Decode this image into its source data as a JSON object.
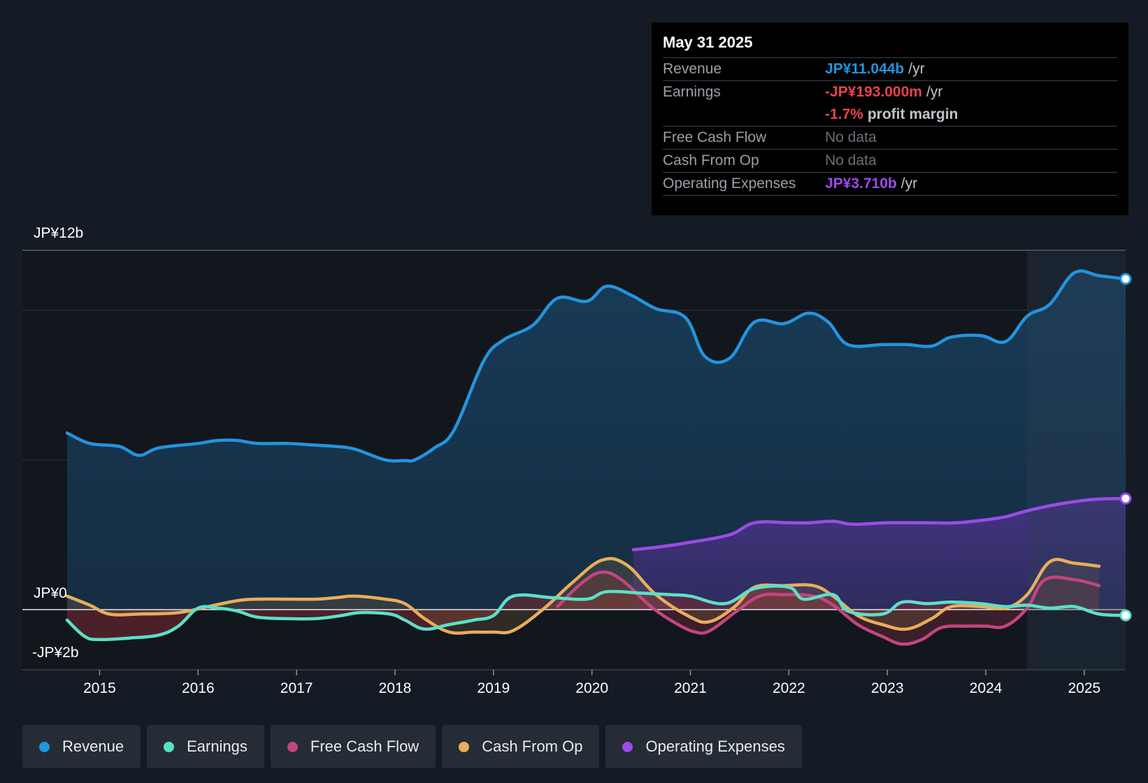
{
  "tooltip": {
    "date": "May 31 2025",
    "revenue_label": "Revenue",
    "revenue_value": "JP¥11.044b",
    "revenue_unit": "/yr",
    "earnings_label": "Earnings",
    "earnings_value": "-JP¥193.000m",
    "earnings_unit": "/yr",
    "margin_value": "-1.7%",
    "margin_label": "profit margin",
    "fcf_label": "Free Cash Flow",
    "fcf_value": "No data",
    "cfo_label": "Cash From Op",
    "cfo_value": "No data",
    "opex_label": "Operating Expenses",
    "opex_value": "JP¥3.710b",
    "opex_unit": "/yr"
  },
  "legend": [
    {
      "label": "Revenue",
      "color": "#2394df"
    },
    {
      "label": "Earnings",
      "color": "#5be0c8"
    },
    {
      "label": "Free Cash Flow",
      "color": "#c4457f"
    },
    {
      "label": "Cash From Op",
      "color": "#e8ad5d"
    },
    {
      "label": "Operating Expenses",
      "color": "#9b4be8"
    }
  ],
  "colors": {
    "revenue": "#2394df",
    "earnings": "#5be0c8",
    "fcf": "#c4457f",
    "cfo": "#e8ad5d",
    "opex": "#9b4be8",
    "negative": "#e8434f",
    "profit_text": "#bfc4ca"
  },
  "chart_data": {
    "type": "line",
    "title": "",
    "unit": "JP¥ billions",
    "y_label_top": "JP¥12b",
    "y_label_zero": "JP¥0",
    "y_label_bottom": "-JP¥2b",
    "ylim": [
      -2,
      12
    ],
    "xlim": [
      2014.67,
      2025.42
    ],
    "highlight_start": 2024.42,
    "x_ticks": [
      "2015",
      "2016",
      "2017",
      "2018",
      "2019",
      "2020",
      "2021",
      "2022",
      "2023",
      "2024",
      "2025"
    ],
    "series": [
      {
        "name": "Revenue",
        "key": "revenue",
        "x": [
          2014.67,
          2014.9,
          2015.2,
          2015.4,
          2015.6,
          2016.0,
          2016.2,
          2016.4,
          2016.6,
          2016.9,
          2017.15,
          2017.4,
          2017.6,
          2017.9,
          2018.1,
          2018.2,
          2018.4,
          2018.6,
          2018.9,
          2019.1,
          2019.4,
          2019.65,
          2019.95,
          2020.15,
          2020.4,
          2020.65,
          2020.95,
          2021.15,
          2021.4,
          2021.65,
          2021.95,
          2022.2,
          2022.4,
          2022.6,
          2022.95,
          2023.2,
          2023.45,
          2023.65,
          2023.95,
          2024.2,
          2024.42,
          2024.65,
          2024.9,
          2025.15,
          2025.42
        ],
        "values": [
          5.9,
          5.55,
          5.45,
          5.15,
          5.4,
          5.55,
          5.65,
          5.65,
          5.55,
          5.55,
          5.5,
          5.45,
          5.35,
          5.0,
          4.98,
          5.0,
          5.4,
          6.0,
          8.3,
          9.0,
          9.5,
          10.4,
          10.3,
          10.8,
          10.5,
          10.05,
          9.75,
          8.45,
          8.4,
          9.6,
          9.55,
          9.9,
          9.6,
          8.85,
          8.85,
          8.85,
          8.8,
          9.1,
          9.15,
          8.95,
          9.8,
          10.2,
          11.25,
          11.15,
          11.044
        ]
      },
      {
        "name": "Operating Expenses",
        "key": "opex",
        "x": [
          2020.42,
          2020.7,
          2021.0,
          2021.4,
          2021.65,
          2022.0,
          2022.2,
          2022.45,
          2022.65,
          2023.0,
          2023.4,
          2023.7,
          2024.0,
          2024.2,
          2024.42,
          2024.7,
          2025.0,
          2025.2,
          2025.42
        ],
        "values": [
          2.0,
          2.1,
          2.25,
          2.5,
          2.9,
          2.9,
          2.9,
          2.95,
          2.85,
          2.9,
          2.9,
          2.9,
          3.0,
          3.1,
          3.3,
          3.5,
          3.65,
          3.7,
          3.71
        ]
      },
      {
        "name": "Earnings",
        "key": "earnings",
        "x": [
          2014.67,
          2014.85,
          2015.0,
          2015.3,
          2015.6,
          2015.8,
          2016.0,
          2016.2,
          2016.4,
          2016.6,
          2016.9,
          2017.2,
          2017.45,
          2017.65,
          2017.95,
          2018.1,
          2018.3,
          2018.55,
          2018.8,
          2019.0,
          2019.2,
          2019.6,
          2019.95,
          2020.15,
          2020.5,
          2020.8,
          2021.0,
          2021.35,
          2021.65,
          2022.0,
          2022.15,
          2022.45,
          2022.6,
          2022.95,
          2023.15,
          2023.4,
          2023.65,
          2023.95,
          2024.2,
          2024.42,
          2024.65,
          2024.9,
          2025.15,
          2025.42
        ],
        "values": [
          -0.35,
          -0.9,
          -1.0,
          -0.95,
          -0.85,
          -0.55,
          0.05,
          0.05,
          -0.05,
          -0.25,
          -0.3,
          -0.3,
          -0.2,
          -0.1,
          -0.15,
          -0.35,
          -0.65,
          -0.5,
          -0.35,
          -0.2,
          0.45,
          0.4,
          0.35,
          0.6,
          0.55,
          0.5,
          0.45,
          0.2,
          0.7,
          0.75,
          0.35,
          0.5,
          -0.05,
          -0.15,
          0.25,
          0.2,
          0.25,
          0.2,
          0.1,
          0.15,
          0.05,
          0.1,
          -0.15,
          -0.193
        ]
      },
      {
        "name": "Cash From Op",
        "key": "cfo",
        "x": [
          2014.67,
          2014.9,
          2015.1,
          2015.4,
          2015.8,
          2016.1,
          2016.4,
          2016.6,
          2016.9,
          2017.2,
          2017.4,
          2017.6,
          2017.9,
          2018.1,
          2018.3,
          2018.55,
          2018.8,
          2019.0,
          2019.2,
          2019.5,
          2019.8,
          2020.1,
          2020.35,
          2020.65,
          2021.0,
          2021.2,
          2021.45,
          2021.65,
          2021.95,
          2022.25,
          2022.45,
          2022.7,
          2022.95,
          2023.2,
          2023.45,
          2023.65,
          2023.95,
          2024.2,
          2024.42,
          2024.65,
          2024.9,
          2025.15
        ],
        "values": [
          0.45,
          0.15,
          -0.15,
          -0.15,
          -0.1,
          0.1,
          0.3,
          0.35,
          0.35,
          0.35,
          0.4,
          0.45,
          0.35,
          0.2,
          -0.3,
          -0.75,
          -0.75,
          -0.75,
          -0.7,
          0.0,
          0.9,
          1.65,
          1.5,
          0.5,
          -0.25,
          -0.4,
          0.1,
          0.75,
          0.8,
          0.8,
          0.45,
          -0.2,
          -0.5,
          -0.65,
          -0.3,
          0.1,
          0.1,
          0.05,
          0.5,
          1.6,
          1.55,
          1.45
        ]
      },
      {
        "name": "Free Cash Flow",
        "key": "fcf",
        "x": [
          2019.65,
          2019.9,
          2020.1,
          2020.3,
          2020.6,
          2020.85,
          2021.05,
          2021.2,
          2021.45,
          2021.7,
          2021.95,
          2022.25,
          2022.45,
          2022.7,
          2022.95,
          2023.15,
          2023.35,
          2023.55,
          2023.8,
          2024.0,
          2024.2,
          2024.42,
          2024.6,
          2024.9,
          2025.15
        ],
        "values": [
          0.1,
          0.9,
          1.25,
          1.0,
          0.1,
          -0.45,
          -0.75,
          -0.7,
          -0.1,
          0.45,
          0.5,
          0.45,
          0.15,
          -0.5,
          -0.9,
          -1.15,
          -1.0,
          -0.6,
          -0.55,
          -0.55,
          -0.55,
          0.05,
          1.0,
          1.0,
          0.8
        ]
      }
    ],
    "end_points": {
      "revenue": 11.044,
      "opex": 3.71,
      "earnings": -0.193
    }
  }
}
